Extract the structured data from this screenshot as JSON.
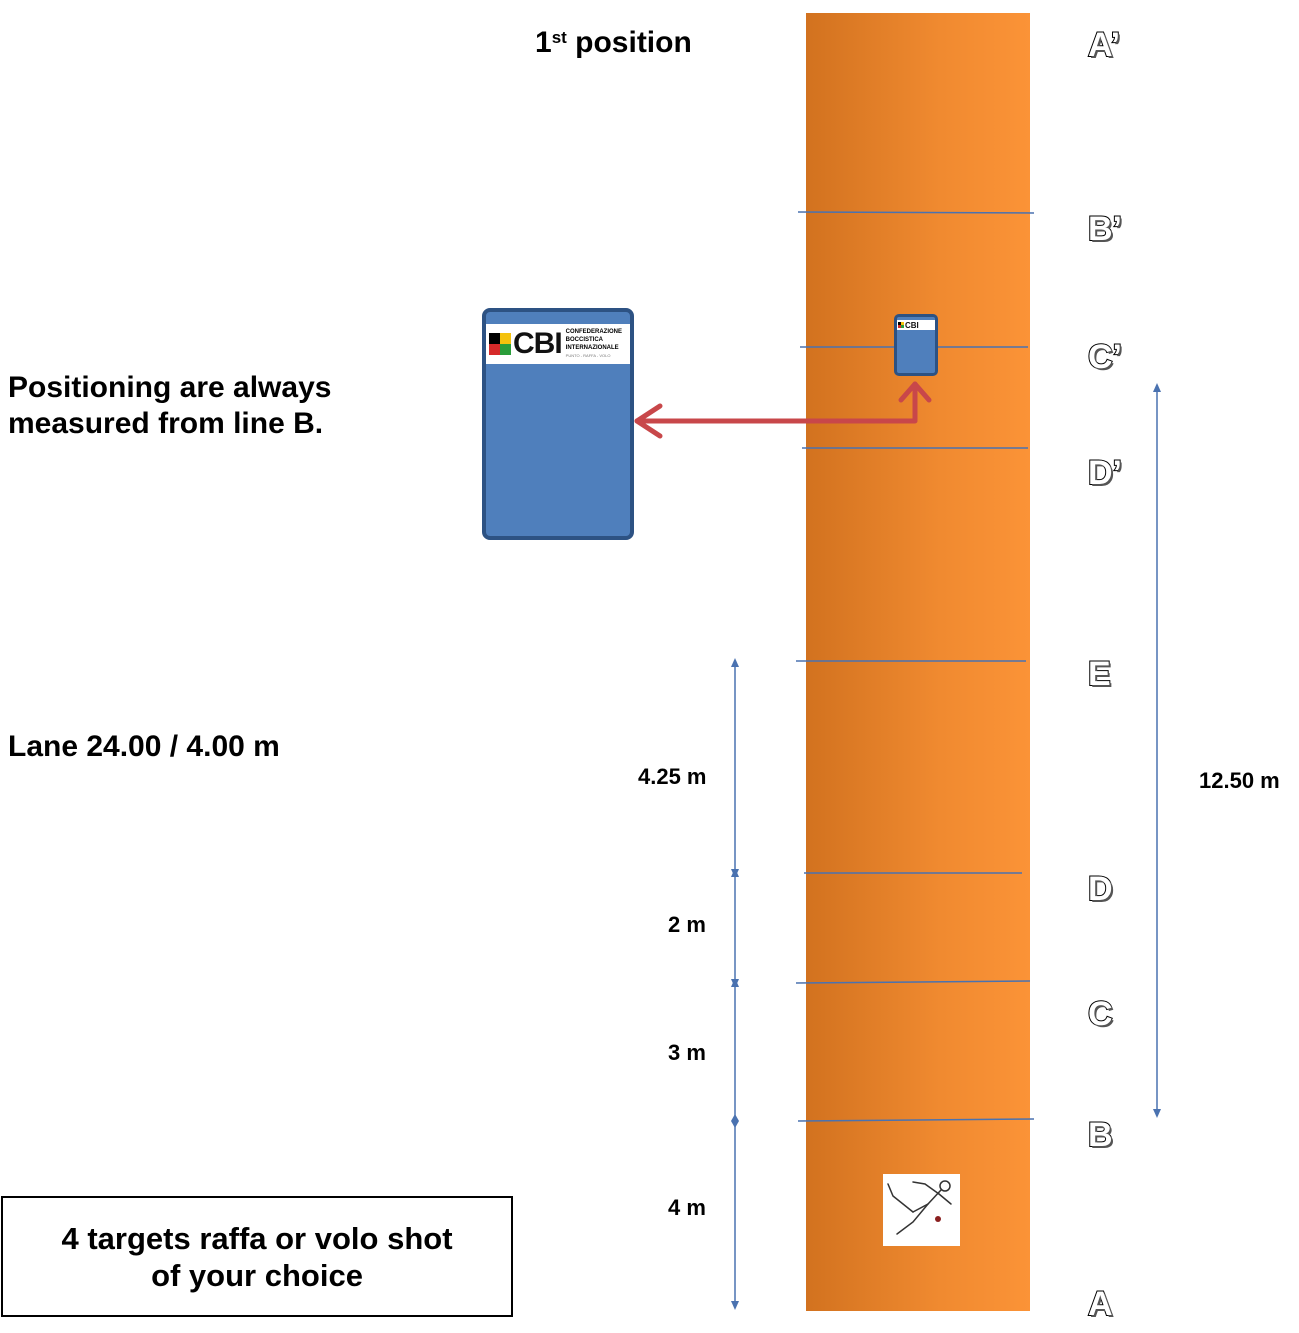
{
  "title": {
    "number": "1",
    "superscript": "st",
    "text": " position"
  },
  "note": {
    "line1": "Positioning are always",
    "line2": "measured from line B."
  },
  "lane_spec": "Lane 24.00 / 4.00 m",
  "box_text": {
    "line1": "4 targets raffa or volo shot",
    "line2": "of your choice"
  },
  "dimensions": {
    "d1": "4.25 m",
    "d2": "2 m",
    "d3": "3 m",
    "d4": "4 m",
    "total": "12.50 m"
  },
  "lines": {
    "a_prime": "A’",
    "b_prime": "B’",
    "c_prime": "C’",
    "d_prime": "D’",
    "e": "E",
    "d": "D",
    "c": "C",
    "b": "B",
    "a": "A"
  },
  "logo": {
    "brand": "CBI",
    "org_line1": "CONFEDERAZIONE",
    "org_line2": "BOCCISTICA",
    "org_line3": "INTERNAZIONALE",
    "tagline": "PUNTO - RAFFA - VOLO"
  },
  "colors": {
    "lane": "#f08a30",
    "board": "#4f7fbc",
    "arrow": "#c8474a",
    "lines": "#4a72b0"
  }
}
